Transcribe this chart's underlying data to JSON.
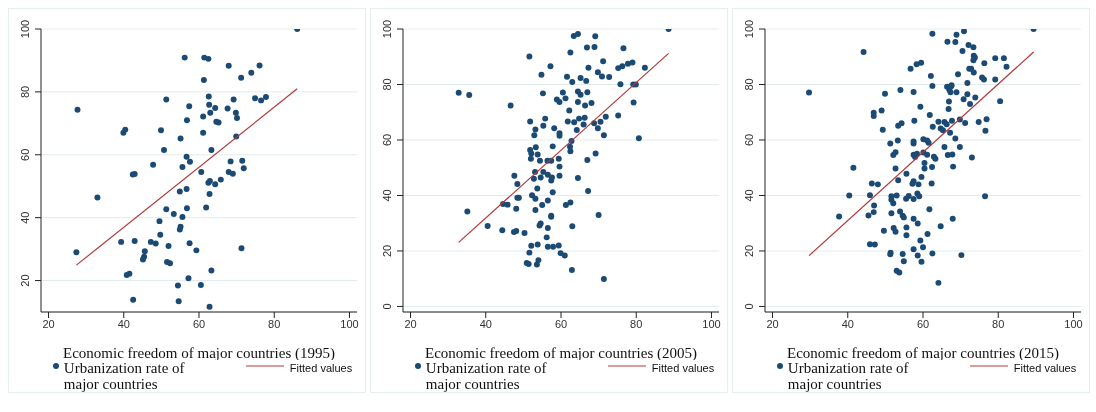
{
  "chart_data": [
    {
      "type": "scatter",
      "xlabel": "Economic freedom of major countries (1995)",
      "xlim": [
        18,
        102
      ],
      "xticks": [
        20,
        40,
        60,
        80,
        100
      ],
      "ylim": [
        10,
        100
      ],
      "yticks": [
        20,
        40,
        60,
        80,
        100
      ],
      "grid": "y",
      "legend": "bottom",
      "marker": "circle",
      "series": [
        {
          "name": "Urbanization rate of major countries",
          "color": "#1b4a74",
          "x": [
            86.1,
            56.2,
            61.4,
            62.5,
            67.9,
            76.1,
            73.9,
            71.2,
            61.3,
            62.6,
            74.9,
            77.8,
            76.5,
            69.2,
            51.3,
            57.4,
            62.7,
            64.3,
            67.6,
            63.0,
            69.8,
            70.1,
            61.1,
            56.8,
            64.6,
            65.2,
            27.7,
            39.9,
            40.4,
            49.9,
            61.1,
            55.1,
            69.9,
            50.7,
            63.3,
            56.7,
            57.6,
            47.8,
            55.6,
            68.4,
            71.5,
            71.9,
            42.4,
            42.9,
            60.6,
            67.9,
            69.0,
            65.8,
            62.5,
            62.9,
            64.3,
            56.7,
            54.9,
            62.8,
            33.0,
            51.3,
            56.8,
            61.9,
            53.3,
            55.6,
            49.5,
            55.1,
            54.9,
            49.7,
            39.3,
            42.9,
            47.2,
            48.5,
            51.9,
            57.5,
            71.3,
            59.3,
            45.6,
            45.4,
            45.1,
            51.5,
            52.3,
            27.4,
            63.3,
            40.8,
            41.5,
            57.2,
            54.4,
            60.5,
            42.5,
            54.6,
            62.8
          ],
          "values": [
            100,
            90.9,
            90.9,
            90.5,
            88.3,
            88.4,
            86.1,
            84.5,
            83.8,
            78.5,
            78.0,
            78.4,
            77.3,
            77.6,
            77.6,
            75.4,
            75.9,
            74.9,
            74.7,
            73.4,
            73.4,
            71.7,
            72.2,
            71.0,
            70.5,
            70.3,
            74.3,
            67.0,
            68.0,
            67.8,
            67.0,
            65.2,
            65.8,
            61.5,
            61.5,
            59.4,
            57.8,
            56.8,
            56.1,
            57.9,
            58.1,
            55.7,
            53.7,
            53.9,
            54.5,
            54.5,
            54.0,
            52.1,
            51.1,
            51.7,
            50.6,
            49.1,
            48.3,
            47.5,
            46.4,
            42.7,
            43.0,
            43.2,
            41.2,
            40.2,
            38.9,
            37.1,
            36.2,
            34.6,
            32.3,
            32.6,
            32.3,
            31.8,
            31.0,
            31.9,
            30.3,
            29.6,
            29.3,
            27.6,
            26.7,
            25.9,
            25.5,
            29.0,
            23.2,
            21.8,
            22.2,
            20.7,
            18.4,
            18.6,
            13.9,
            13.4,
            11.7
          ]
        },
        {
          "name": "Fitted values",
          "type": "line",
          "marker": "none",
          "color": "#b03a3a",
          "x": [
            27.4,
            86.1
          ],
          "values": [
            24.9,
            81.0
          ]
        }
      ]
    },
    {
      "type": "scatter",
      "xlabel": "Economic freedom of major countries (2005)",
      "xlim": [
        18,
        102
      ],
      "xticks": [
        20,
        40,
        60,
        80,
        100
      ],
      "ylim": [
        -2,
        100
      ],
      "yticks": [
        0,
        20,
        40,
        60,
        80,
        100
      ],
      "grid": "y",
      "legend": "bottom",
      "marker": "circle",
      "series": [
        {
          "name": "Urbanization rate of major countries",
          "color": "#1b4a74",
          "x": [
            88.6,
            63.4,
            64.5,
            69.1,
            51.6,
            62.5,
            66.9,
            68.9,
            76.6,
            57.2,
            67.3,
            71.2,
            75.2,
            76.3,
            77.8,
            79.0,
            82.3,
            54.8,
            61.6,
            65.2,
            63.0,
            66.7,
            69.8,
            70.9,
            72.8,
            75.8,
            79.2,
            79.9,
            32.8,
            35.6,
            55.2,
            60.5,
            64.5,
            65.2,
            67.0,
            46.6,
            58.9,
            59.6,
            61.2,
            64.5,
            68.1,
            79.3,
            66.4,
            62.2,
            51.8,
            55.8,
            61.8,
            63.5,
            64.8,
            66.3,
            71.9,
            70.5,
            75.2,
            55.3,
            66.0,
            68.8,
            53.2,
            58.2,
            64.2,
            69.8,
            52.9,
            59.6,
            59.6,
            71.4,
            80.7,
            62.8,
            57.8,
            53.3,
            51.8,
            62.4,
            52.1,
            53.8,
            62.5,
            69.2,
            52.0,
            59.4,
            54.4,
            56.4,
            57.4,
            67.0,
            59.6,
            53.1,
            55.3,
            56.5,
            59.6,
            47.6,
            52.8,
            54.6,
            57.6,
            57.4,
            64.5,
            48.4,
            53.7,
            57.8,
            67.2,
            48.4,
            48.8,
            52.3,
            53.2,
            56.5,
            44.6,
            45.8,
            55.0,
            61.3,
            62.5,
            35.1,
            48.1,
            53.2,
            57.4,
            57.4,
            70.0,
            54.3,
            54.6,
            56.5,
            63.0,
            40.5,
            44.4,
            47.5,
            48.1,
            50.3,
            56.2,
            52.1,
            53.8,
            56.5,
            57.9,
            59.4,
            59.9,
            61.0,
            51.6,
            54.0,
            50.9,
            51.4,
            53.6,
            62.9,
            71.4
          ],
          "values": [
            100,
            97.5,
            98.2,
            97.4,
            90.1,
            91.5,
            93.3,
            93.5,
            93.1,
            86.6,
            86.0,
            88.4,
            85.9,
            86.6,
            87.5,
            87.9,
            86.0,
            83.5,
            82.8,
            82.3,
            80.9,
            81.3,
            84.4,
            82.9,
            82.7,
            80.1,
            80.0,
            80.0,
            77.0,
            76.2,
            76.8,
            77.1,
            77.5,
            76.3,
            77.2,
            72.4,
            74.6,
            73.7,
            75.0,
            73.7,
            73.3,
            73.5,
            72.4,
            70.6,
            66.7,
            67.7,
            66.7,
            66.4,
            67.7,
            68.0,
            68.4,
            66.6,
            68.8,
            65.1,
            65.6,
            66.0,
            63.8,
            64.2,
            63.6,
            64.2,
            61.7,
            62.4,
            61.5,
            61.7,
            60.6,
            59.6,
            57.7,
            57.4,
            56.4,
            57.6,
            55.1,
            54.8,
            55.9,
            55.1,
            53.2,
            53.2,
            52.5,
            52.5,
            52.5,
            52.8,
            50.4,
            48.5,
            48.5,
            47.5,
            47.1,
            47.1,
            46.0,
            46.5,
            46.5,
            45.4,
            46.3,
            44.1,
            42.5,
            41.2,
            41.6,
            39.2,
            39.2,
            40.1,
            38.8,
            38.2,
            36.9,
            36.7,
            36.6,
            36.6,
            37.5,
            34.2,
            35.2,
            34.8,
            32.7,
            32.3,
            33.0,
            29.2,
            29.9,
            28.3,
            28.9,
            29.0,
            27.5,
            26.8,
            27.2,
            26.5,
            24.9,
            21.9,
            22.3,
            21.5,
            21.5,
            22.0,
            19.2,
            18.4,
            19.4,
            16.7,
            15.7,
            15.3,
            15.1,
            13.1,
            9.9
          ]
        },
        {
          "name": "Fitted values",
          "type": "line",
          "marker": "none",
          "color": "#b03a3a",
          "x": [
            32.8,
            88.6
          ],
          "values": [
            23.1,
            91.2
          ]
        }
      ]
    },
    {
      "type": "scatter",
      "xlabel": "Economic freedom of major countries (2015)",
      "xlim": [
        18,
        102
      ],
      "xticks": [
        20,
        40,
        60,
        80,
        100
      ],
      "ylim": [
        -2,
        100
      ],
      "yticks": [
        0,
        20,
        40,
        60,
        80,
        100
      ],
      "grid": "y",
      "legend": "bottom",
      "marker": "circle",
      "series": [
        {
          "name": "Urbanization rate of major countries",
          "color": "#1b4a74",
          "x": [
            89.4,
            62.5,
            70.9,
            68.9,
            66.5,
            68.6,
            72.1,
            73.4,
            70.5,
            44.2,
            73.5,
            73.8,
            73.4,
            79.2,
            81.5,
            59.5,
            58.3,
            76.3,
            82.2,
            56.7,
            72.3,
            72.8,
            73.5,
            69.3,
            62.1,
            75.7,
            76.2,
            79.2,
            71.8,
            62.5,
            66.4,
            67.5,
            67.6,
            67.0,
            67.3,
            68.9,
            54.0,
            57.5,
            29.7,
            49.9,
            71.8,
            73.9,
            70.8,
            80.5,
            66.9,
            72.5,
            59.3,
            66.8,
            49.0,
            46.9,
            46.9,
            61.8,
            76.9,
            69.8,
            57.7,
            64.1,
            65.7,
            67.7,
            74.8,
            71.2,
            66.3,
            53.4,
            54.3,
            62.6,
            64.7,
            65.3,
            49.3,
            67.2,
            76.6,
            68.6,
            53.3,
            57.5,
            57.5,
            60.1,
            61.1,
            61.5,
            51.3,
            65.7,
            69.8,
            52.1,
            52.7,
            57.5,
            57.9,
            60.1,
            61.1,
            58.4,
            62.9,
            63.3,
            66.6,
            67.8,
            73.0,
            60.4,
            62.4,
            68.0,
            41.5,
            52.7,
            60.4,
            55.6,
            59.6,
            53.4,
            46.4,
            48.0,
            57.5,
            57.2,
            58.8,
            62.3,
            58.5,
            59.0,
            40.4,
            45.9,
            51.6,
            53.0,
            56.2,
            55.5,
            57.5,
            51.6,
            76.5,
            52.1,
            47.0,
            61.7,
            46.9,
            53.9,
            51.6,
            45.5,
            37.7,
            54.6,
            54.9,
            57.5,
            67.9,
            58.6,
            64.7,
            55.6,
            52.2,
            52.7,
            49.6,
            61.2,
            55.6,
            59.3,
            45.9,
            47.2,
            60.0,
            57.5,
            51.4,
            51.3,
            54.6,
            58.6,
            62.5,
            70.2,
            54.9,
            59.6,
            53.0,
            53.7,
            64.1
          ],
          "values": [
            100,
            98.3,
            99.2,
            97.9,
            95.4,
            95.3,
            94.2,
            93.4,
            92.1,
            91.7,
            90.4,
            89.7,
            88.7,
            89.5,
            89.5,
            87.8,
            87.3,
            87.7,
            86.4,
            85.7,
            85.7,
            85.7,
            84.3,
            83.7,
            83.1,
            82.5,
            81.8,
            81.8,
            80.5,
            79.5,
            79.2,
            79.4,
            79.7,
            78.1,
            77.2,
            77.2,
            78.0,
            77.3,
            77.1,
            76.7,
            76.5,
            75.3,
            74.7,
            74.0,
            73.9,
            73.0,
            72.0,
            71.2,
            70.6,
            69.8,
            68.6,
            69.0,
            67.5,
            67.4,
            66.9,
            66.6,
            66.5,
            66.9,
            66.5,
            66.1,
            65.7,
            65.1,
            66.0,
            64.8,
            64.1,
            63.5,
            63.7,
            62.6,
            63.3,
            60.5,
            59.8,
            59.5,
            58.7,
            60.3,
            59.8,
            59.0,
            58.7,
            57.5,
            57.5,
            54.6,
            55.6,
            54.7,
            53.9,
            55.5,
            54.7,
            55.0,
            54.0,
            53.2,
            54.6,
            54.8,
            53.7,
            51.7,
            50.3,
            50.4,
            50.0,
            49.7,
            49.7,
            47.8,
            46.7,
            45.5,
            44.3,
            44.0,
            45.1,
            44.2,
            44.0,
            44.3,
            40.7,
            39.7,
            40.0,
            40.1,
            39.7,
            40.0,
            39.8,
            38.8,
            38.7,
            38.5,
            39.7,
            37.2,
            36.4,
            35.0,
            34.0,
            34.2,
            33.6,
            32.8,
            32.4,
            32.7,
            32.1,
            31.6,
            31.6,
            29.9,
            28.9,
            28.5,
            28.3,
            26.9,
            27.3,
            26.1,
            25.7,
            23.8,
            22.4,
            22.3,
            21.3,
            20.6,
            19.4,
            18.8,
            18.9,
            18.4,
            19.1,
            18.5,
            16.3,
            16.1,
            12.9,
            12.2,
            8.5
          ]
        },
        {
          "name": "Fitted values",
          "type": "line",
          "marker": "none",
          "color": "#b03a3a",
          "x": [
            29.7,
            89.4
          ],
          "values": [
            18.3,
            91.7
          ]
        }
      ]
    }
  ]
}
